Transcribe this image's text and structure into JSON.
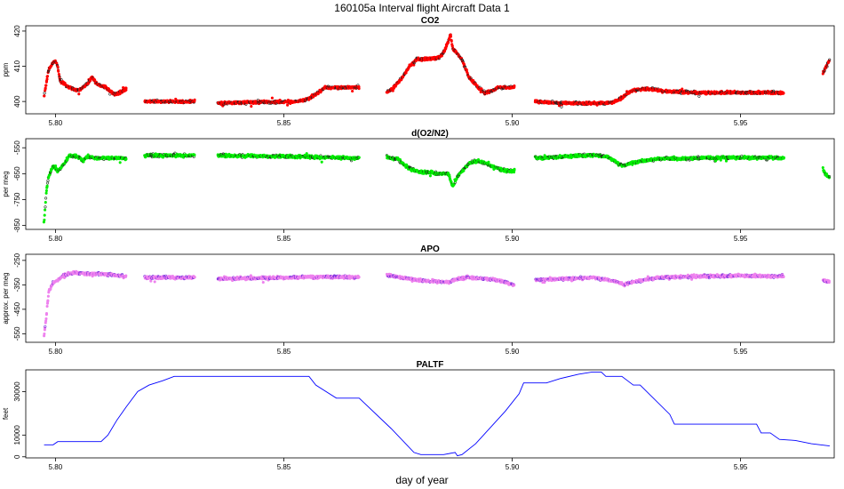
{
  "figure": {
    "title": "160105a   Interval flight Aircraft Data 1",
    "xlabel": "day of year"
  },
  "chart_data": [
    {
      "type": "scatter",
      "title": "CO2",
      "ylabel": "ppm",
      "xlim": [
        5.7935,
        5.9705
      ],
      "ylim": [
        396.5,
        421.5
      ],
      "xticks": [
        5.8,
        5.85,
        5.9,
        5.95
      ],
      "xtick_labels": [
        "5.80",
        "5.85",
        "5.90",
        "5.95"
      ],
      "yticks": [
        400,
        410,
        420
      ],
      "ytick_labels": [
        "400",
        "410",
        "420"
      ],
      "point_color": "#ff0000",
      "edge_color": "#202020",
      "x_gaps": [
        [
          5.8155,
          5.8195
        ],
        [
          5.8305,
          5.8355
        ],
        [
          5.8665,
          5.8725
        ],
        [
          5.9005,
          5.905
        ],
        [
          5.9595,
          5.968
        ]
      ],
      "series": [
        {
          "points": [
            [
              5.7975,
              401.5
            ],
            [
              5.7985,
              409
            ],
            [
              5.7995,
              411
            ],
            [
              5.8,
              411.5
            ],
            [
              5.8005,
              410
            ],
            [
              5.801,
              406
            ],
            [
              5.803,
              404
            ],
            [
              5.805,
              403
            ],
            [
              5.807,
              405
            ],
            [
              5.808,
              407
            ],
            [
              5.809,
              405
            ],
            [
              5.811,
              404
            ],
            [
              5.813,
              402
            ],
            [
              5.8155,
              403.5
            ],
            [
              5.8195,
              400
            ],
            [
              5.8305,
              400
            ],
            [
              5.8355,
              399.5
            ],
            [
              5.845,
              399.8
            ],
            [
              5.853,
              400
            ],
            [
              5.855,
              400.5
            ],
            [
              5.857,
              402
            ],
            [
              5.859,
              404
            ],
            [
              5.862,
              404
            ],
            [
              5.8665,
              404
            ],
            [
              5.8725,
              402.5
            ],
            [
              5.874,
              404
            ],
            [
              5.876,
              407
            ],
            [
              5.8775,
              410
            ],
            [
              5.879,
              412
            ],
            [
              5.882,
              412
            ],
            [
              5.884,
              412.5
            ],
            [
              5.885,
              414
            ],
            [
              5.886,
              417
            ],
            [
              5.8865,
              419
            ],
            [
              5.887,
              415
            ],
            [
              5.889,
              412
            ],
            [
              5.8905,
              407
            ],
            [
              5.8925,
              404
            ],
            [
              5.894,
              402.5
            ],
            [
              5.8955,
              403
            ],
            [
              5.897,
              404
            ],
            [
              5.9005,
              404
            ],
            [
              5.905,
              400
            ],
            [
              5.91,
              399.5
            ],
            [
              5.915,
              399.5
            ],
            [
              5.92,
              399.5
            ],
            [
              5.9225,
              400
            ],
            [
              5.9245,
              401.5
            ],
            [
              5.926,
              403
            ],
            [
              5.928,
              403.5
            ],
            [
              5.93,
              403.5
            ],
            [
              5.933,
              403
            ],
            [
              5.94,
              402.5
            ],
            [
              5.95,
              402.5
            ],
            [
              5.9595,
              402.5
            ],
            [
              5.968,
              408
            ],
            [
              5.969,
              410.5
            ],
            [
              5.9695,
              412
            ]
          ]
        }
      ]
    },
    {
      "type": "scatter",
      "title": "d(O2/N2)",
      "ylabel": "per meg",
      "xlim": [
        5.7935,
        5.9705
      ],
      "ylim": [
        -865,
        -515
      ],
      "xticks": [
        5.8,
        5.85,
        5.9,
        5.95
      ],
      "xtick_labels": [
        "5.80",
        "5.85",
        "5.90",
        "5.95"
      ],
      "yticks": [
        -850,
        -750,
        -650,
        -550
      ],
      "ytick_labels": [
        "-850",
        "-750",
        "-650",
        "-550"
      ],
      "point_color": "#00ee00",
      "edge_color": "#1a3a1a",
      "x_gaps": [
        [
          5.8155,
          5.8195
        ],
        [
          5.8305,
          5.8355
        ],
        [
          5.8665,
          5.8725
        ],
        [
          5.9005,
          5.905
        ],
        [
          5.9595,
          5.968
        ]
      ],
      "series": [
        {
          "points": [
            [
              5.7975,
              -840
            ],
            [
              5.798,
              -720
            ],
            [
              5.7985,
              -660
            ],
            [
              5.7995,
              -620
            ],
            [
              5.8005,
              -640
            ],
            [
              5.802,
              -610
            ],
            [
              5.803,
              -580
            ],
            [
              5.805,
              -585
            ],
            [
              5.806,
              -600
            ],
            [
              5.807,
              -585
            ],
            [
              5.809,
              -590
            ],
            [
              5.812,
              -590
            ],
            [
              5.8155,
              -590
            ],
            [
              5.8195,
              -580
            ],
            [
              5.8305,
              -580
            ],
            [
              5.8355,
              -580
            ],
            [
              5.845,
              -582
            ],
            [
              5.855,
              -585
            ],
            [
              5.8665,
              -590
            ],
            [
              5.8725,
              -585
            ],
            [
              5.875,
              -595
            ],
            [
              5.877,
              -625
            ],
            [
              5.879,
              -640
            ],
            [
              5.882,
              -645
            ],
            [
              5.884,
              -650
            ],
            [
              5.886,
              -650
            ],
            [
              5.887,
              -700
            ],
            [
              5.888,
              -660
            ],
            [
              5.889,
              -640
            ],
            [
              5.8905,
              -610
            ],
            [
              5.8925,
              -600
            ],
            [
              5.894,
              -610
            ],
            [
              5.896,
              -625
            ],
            [
              5.8985,
              -640
            ],
            [
              5.9005,
              -640
            ],
            [
              5.905,
              -590
            ],
            [
              5.912,
              -583
            ],
            [
              5.918,
              -578
            ],
            [
              5.921,
              -585
            ],
            [
              5.923,
              -608
            ],
            [
              5.9245,
              -620
            ],
            [
              5.926,
              -610
            ],
            [
              5.929,
              -600
            ],
            [
              5.932,
              -592
            ],
            [
              5.94,
              -590
            ],
            [
              5.95,
              -588
            ],
            [
              5.9595,
              -590
            ],
            [
              5.968,
              -630
            ],
            [
              5.9685,
              -650
            ],
            [
              5.9695,
              -668
            ]
          ]
        }
      ]
    },
    {
      "type": "scatter",
      "title": "APO",
      "ylabel": "approx. per meg",
      "xlim": [
        5.7935,
        5.9705
      ],
      "ylim": [
        -585,
        -225
      ],
      "xticks": [
        5.8,
        5.85,
        5.9,
        5.95
      ],
      "xtick_labels": [
        "5.80",
        "5.85",
        "5.90",
        "5.95"
      ],
      "yticks": [
        -550,
        -450,
        -350,
        -250
      ],
      "ytick_labels": [
        "-550",
        "-450",
        "-350",
        "-250"
      ],
      "point_color": "#ee82ee",
      "edge_color": "#7b2fdf",
      "x_gaps": [
        [
          5.8155,
          5.8195
        ],
        [
          5.8305,
          5.8355
        ],
        [
          5.8665,
          5.8725
        ],
        [
          5.9005,
          5.905
        ],
        [
          5.9595,
          5.968
        ]
      ],
      "series": [
        {
          "points": [
            [
              5.7975,
              -560
            ],
            [
              5.798,
              -480
            ],
            [
              5.7985,
              -380
            ],
            [
              5.7995,
              -340
            ],
            [
              5.8005,
              -330
            ],
            [
              5.802,
              -310
            ],
            [
              5.804,
              -300
            ],
            [
              5.807,
              -305
            ],
            [
              5.81,
              -305
            ],
            [
              5.8155,
              -315
            ],
            [
              5.8195,
              -320
            ],
            [
              5.8305,
              -320
            ],
            [
              5.8355,
              -325
            ],
            [
              5.845,
              -323
            ],
            [
              5.855,
              -318
            ],
            [
              5.8665,
              -318
            ],
            [
              5.8725,
              -310
            ],
            [
              5.876,
              -320
            ],
            [
              5.879,
              -330
            ],
            [
              5.883,
              -335
            ],
            [
              5.886,
              -340
            ],
            [
              5.888,
              -325
            ],
            [
              5.8905,
              -320
            ],
            [
              5.8935,
              -325
            ],
            [
              5.897,
              -330
            ],
            [
              5.9005,
              -352
            ],
            [
              5.905,
              -330
            ],
            [
              5.912,
              -325
            ],
            [
              5.918,
              -320
            ],
            [
              5.9225,
              -335
            ],
            [
              5.9245,
              -350
            ],
            [
              5.926,
              -340
            ],
            [
              5.929,
              -330
            ],
            [
              5.932,
              -320
            ],
            [
              5.94,
              -315
            ],
            [
              5.95,
              -313
            ],
            [
              5.9595,
              -315
            ],
            [
              5.968,
              -330
            ],
            [
              5.9695,
              -340
            ]
          ]
        }
      ]
    },
    {
      "type": "line",
      "title": "PALTF",
      "ylabel": "feet",
      "xlim": [
        5.7935,
        5.9705
      ],
      "ylim": [
        -500,
        40000
      ],
      "xticks": [
        5.8,
        5.85,
        5.9,
        5.95
      ],
      "xtick_labels": [
        "5.80",
        "5.85",
        "5.90",
        "5.95"
      ],
      "yticks": [
        0,
        10000,
        30000
      ],
      "ytick_labels": [
        "0",
        "10000",
        "30000"
      ],
      "line_color": "#0000ff",
      "series": [
        {
          "points": [
            [
              5.7975,
              5500
            ],
            [
              5.7995,
              5500
            ],
            [
              5.8005,
              7000
            ],
            [
              5.81,
              7000
            ],
            [
              5.8115,
              10000
            ],
            [
              5.8135,
              17000
            ],
            [
              5.8155,
              23000
            ],
            [
              5.818,
              30000
            ],
            [
              5.8205,
              33000
            ],
            [
              5.8235,
              35000
            ],
            [
              5.826,
              37000
            ],
            [
              5.8385,
              37000
            ],
            [
              5.8555,
              37000
            ],
            [
              5.857,
              33000
            ],
            [
              5.8615,
              27000
            ],
            [
              5.8665,
              27000
            ],
            [
              5.8735,
              13000
            ],
            [
              5.8785,
              2000
            ],
            [
              5.88,
              1000
            ],
            [
              5.885,
              1000
            ],
            [
              5.8875,
              2000
            ],
            [
              5.888,
              500
            ],
            [
              5.889,
              1000
            ],
            [
              5.892,
              6000
            ],
            [
              5.8985,
              21000
            ],
            [
              5.9015,
              29000
            ],
            [
              5.9025,
              34000
            ],
            [
              5.9075,
              34000
            ],
            [
              5.9105,
              36000
            ],
            [
              5.9145,
              38000
            ],
            [
              5.9175,
              39000
            ],
            [
              5.9195,
              39000
            ],
            [
              5.9205,
              37000
            ],
            [
              5.924,
              37000
            ],
            [
              5.9265,
              33000
            ],
            [
              5.928,
              33000
            ],
            [
              5.9345,
              19500
            ],
            [
              5.9355,
              15000
            ],
            [
              5.945,
              15000
            ],
            [
              5.9535,
              15000
            ],
            [
              5.9545,
              11000
            ],
            [
              5.9565,
              11000
            ],
            [
              5.9585,
              8000
            ],
            [
              5.962,
              7500
            ],
            [
              5.9655,
              6000
            ],
            [
              5.9695,
              5000
            ]
          ]
        }
      ]
    }
  ]
}
